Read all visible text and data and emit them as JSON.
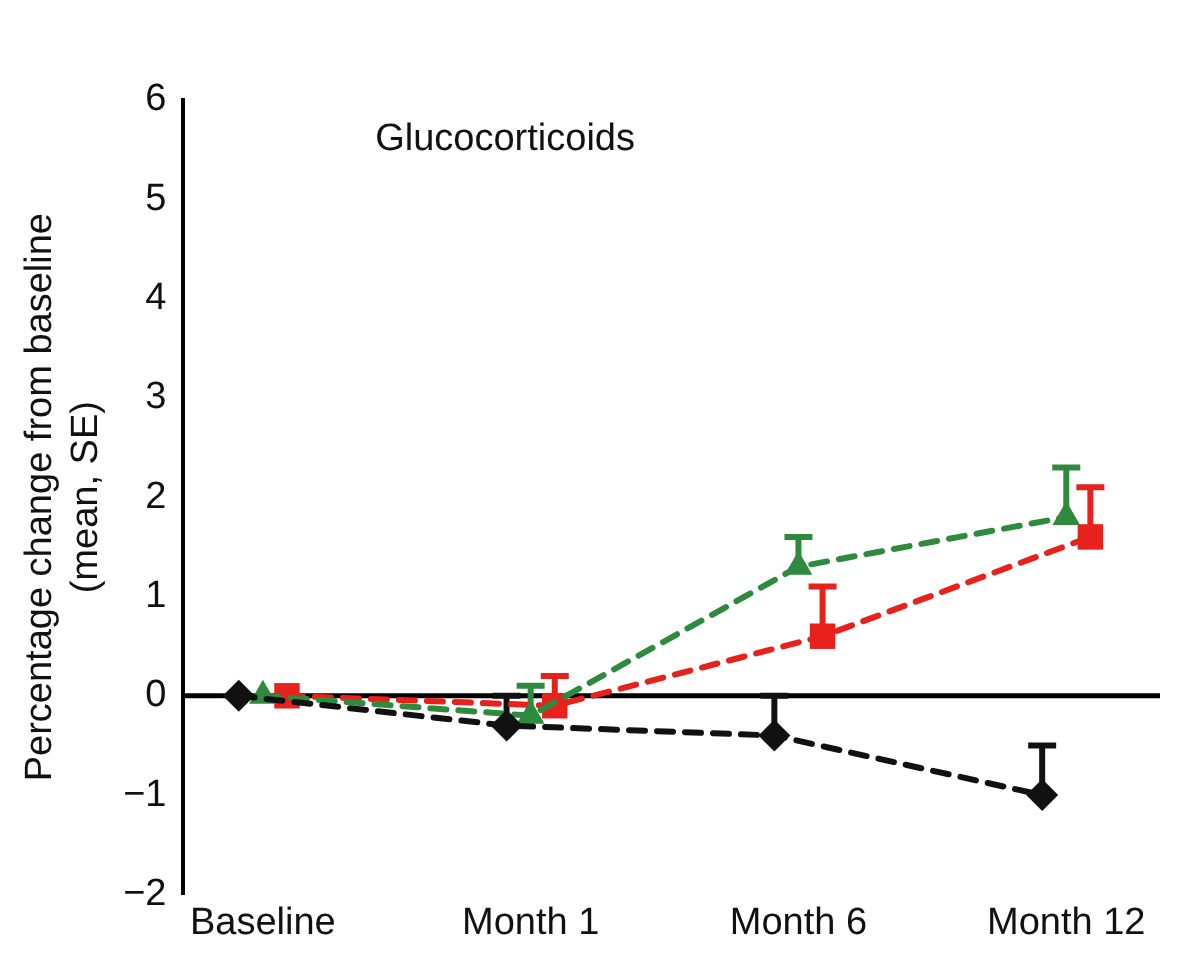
{
  "chart_data": {
    "type": "line",
    "title": "Glucocorticoids",
    "ylabel": "Percentage change from baseline\n(mean, SE)",
    "categories": [
      "Baseline",
      "Month 1",
      "Month 6",
      "Month 12"
    ],
    "series": [
      {
        "color": "#111111",
        "marker": "diamond",
        "values": [
          0,
          -0.3,
          -0.4,
          -1.0
        ],
        "errors": [
          null,
          [
            -0.3,
            0
          ],
          [
            -0.4,
            0
          ],
          [
            -1.0,
            -0.5
          ]
        ]
      },
      {
        "color": "#2e8b3e",
        "marker": "triangle",
        "values": [
          0,
          -0.2,
          1.3,
          1.8
        ],
        "errors": [
          null,
          [
            -0.2,
            0.1
          ],
          [
            1.3,
            1.6
          ],
          [
            1.8,
            2.3
          ]
        ]
      },
      {
        "color": "#e8211d",
        "marker": "square",
        "values": [
          0,
          -0.1,
          0.6,
          1.6
        ],
        "errors": [
          null,
          [
            -0.1,
            0.2
          ],
          [
            0.6,
            1.1
          ],
          [
            1.6,
            2.1
          ]
        ]
      }
    ],
    "ylim": [
      -2,
      6
    ],
    "yticks": [
      -2,
      -1,
      0,
      1,
      2,
      3,
      4,
      5,
      6
    ],
    "ref_lines": [
      {
        "axis": "y",
        "value": 0,
        "color": "#000000"
      }
    ],
    "line_style": "dashed",
    "grid": false,
    "legend": false
  }
}
